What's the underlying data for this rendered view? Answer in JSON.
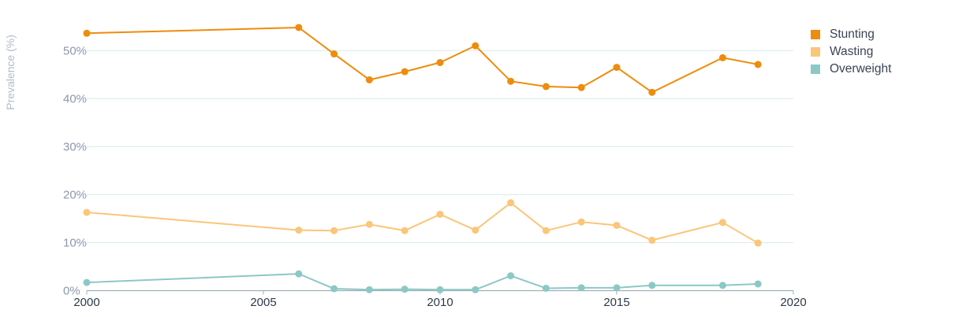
{
  "chart_data": {
    "type": "line",
    "ylabel": "Prevalence (%)",
    "xlabel": "",
    "xlim": [
      2000,
      2020
    ],
    "ylim": [
      0,
      55
    ],
    "x_ticks": [
      2000,
      2005,
      2010,
      2015,
      2020
    ],
    "y_ticks": [
      0,
      10,
      20,
      30,
      40,
      50
    ],
    "y_tick_suffix": "%",
    "grid": true,
    "legend_position": "top-right",
    "series": [
      {
        "name": "Stunting",
        "color": "#ee8c0c",
        "x": [
          2000,
          2006,
          2007,
          2008,
          2009,
          2010,
          2011,
          2012,
          2013,
          2014,
          2015,
          2016,
          2018,
          2019
        ],
        "values": [
          53.6,
          54.8,
          49.3,
          43.9,
          45.6,
          47.5,
          51.0,
          43.6,
          42.5,
          42.3,
          46.5,
          41.3,
          48.5,
          47.1
        ]
      },
      {
        "name": "Wasting",
        "color": "#fac679",
        "x": [
          2000,
          2006,
          2007,
          2008,
          2009,
          2010,
          2011,
          2012,
          2013,
          2014,
          2015,
          2016,
          2018,
          2019
        ],
        "values": [
          16.3,
          12.6,
          12.5,
          13.8,
          12.5,
          15.9,
          12.6,
          18.3,
          12.5,
          14.3,
          13.6,
          10.5,
          14.2,
          9.9
        ]
      },
      {
        "name": "Overweight",
        "color": "#8cc8c6",
        "x": [
          2000,
          2006,
          2007,
          2008,
          2009,
          2010,
          2011,
          2012,
          2013,
          2014,
          2015,
          2016,
          2018,
          2019
        ],
        "values": [
          1.7,
          3.5,
          0.4,
          0.2,
          0.3,
          0.2,
          0.2,
          3.1,
          0.5,
          0.6,
          0.6,
          1.1,
          1.1,
          1.4
        ]
      }
    ]
  }
}
